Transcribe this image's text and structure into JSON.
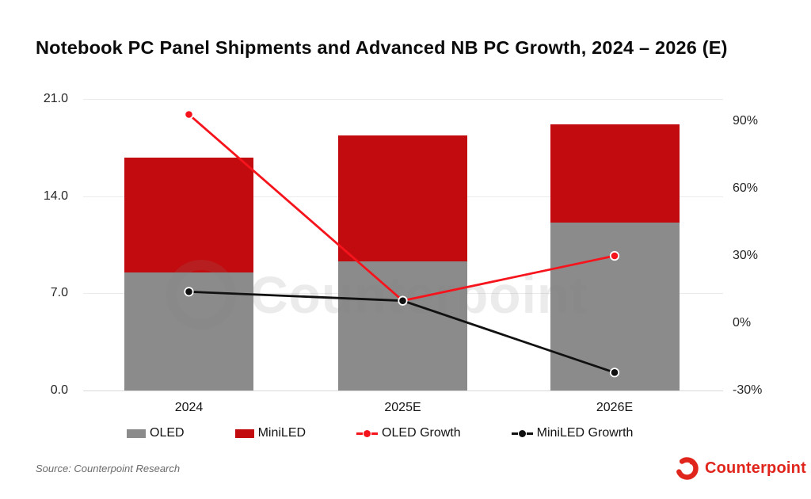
{
  "title": "Notebook PC Panel Shipments and Advanced NB PC Growth, 2024 – 2026 (E)",
  "source": "Source: Counterpoint Research",
  "brand": {
    "name": "Counterpoint"
  },
  "watermark": "Counterpoint",
  "colors": {
    "oled_bar": "#8B8B8B",
    "miniled_bar": "#C20B0E",
    "oled_growth_line": "#F6141C",
    "miniled_growth_line": "#111111",
    "brand_red": "#E0251C",
    "gridline": "#EBEBEB"
  },
  "chart_data": {
    "type": "combo (stacked bar + line, dual axis)",
    "categories": [
      "2024",
      "2025E",
      "2026E"
    ],
    "bar_series": [
      {
        "name": "OLED",
        "axis": "left",
        "values": [
          8.5,
          9.3,
          12.1
        ],
        "color_key": "oled_bar"
      },
      {
        "name": "MiniLED",
        "axis": "left",
        "values": [
          8.3,
          9.1,
          7.1
        ],
        "color_key": "miniled_bar"
      }
    ],
    "line_series": [
      {
        "name": "OLED Growth",
        "axis": "right",
        "values_pct": [
          93,
          10,
          30
        ],
        "color_key": "oled_growth_line"
      },
      {
        "name": "MiniLED Growrth",
        "axis": "right",
        "values_pct": [
          14,
          10,
          -22
        ],
        "color_key": "miniled_growth_line"
      }
    ],
    "left_axis": {
      "min": 0,
      "max": 21,
      "ticks": [
        "21.0",
        "14.0",
        "7.0",
        "0.0"
      ]
    },
    "right_axis": {
      "min": -30,
      "max": 90,
      "ticks": [
        "90%",
        "60%",
        "30%",
        "0%",
        "-30%"
      ]
    },
    "legend_position": "bottom",
    "grid": "horizontal only"
  }
}
